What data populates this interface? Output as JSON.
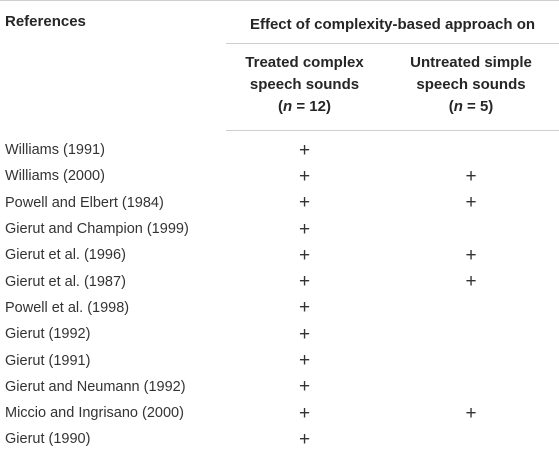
{
  "header": {
    "references_label": "References",
    "effect_label": "Effect of complexity-based approach on",
    "treated_label": "Treated complex speech sounds",
    "treated_n": "(n = 12)",
    "untreated_label": "Untreated simple speech sounds",
    "untreated_n": "(n = 5)"
  },
  "rows": [
    {
      "reference": "Williams (1991)",
      "treated": "+",
      "untreated": ""
    },
    {
      "reference": "Williams (2000)",
      "treated": "+",
      "untreated": "+"
    },
    {
      "reference": "Powell and Elbert (1984)",
      "treated": "+",
      "untreated": "+"
    },
    {
      "reference": "Gierut and Champion (1999)",
      "treated": "+",
      "untreated": ""
    },
    {
      "reference": "Gierut et al. (1996)",
      "treated": "+",
      "untreated": "+"
    },
    {
      "reference": "Gierut et al. (1987)",
      "treated": "+",
      "untreated": "+"
    },
    {
      "reference": "Powell et al. (1998)",
      "treated": "+",
      "untreated": ""
    },
    {
      "reference": "Gierut (1992)",
      "treated": "+",
      "untreated": ""
    },
    {
      "reference": "Gierut (1991)",
      "treated": "+",
      "untreated": ""
    },
    {
      "reference": "Gierut and Neumann (1992)",
      "treated": "+",
      "untreated": ""
    },
    {
      "reference": "Miccio and Ingrisano (2000)",
      "treated": "+",
      "untreated": "+"
    },
    {
      "reference": "Gierut (1990)",
      "treated": "+",
      "untreated": ""
    }
  ]
}
